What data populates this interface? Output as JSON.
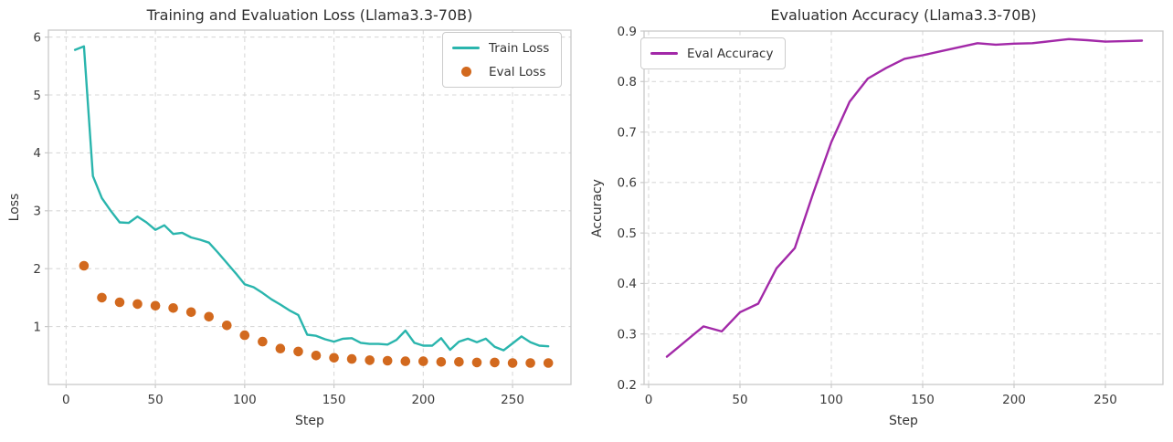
{
  "figure": {
    "background": "#ffffff",
    "grid_color": "#d9d9d9",
    "spine_color": "#c9c9c9",
    "tick_text_color": "#3b3b3b"
  },
  "chart_data": [
    {
      "type": "line",
      "title": "Training and Evaluation Loss (Llama3.3-70B)",
      "xlabel": "Step",
      "ylabel": "Loss",
      "xlim": [
        -9.9,
        282.7
      ],
      "ylim": [
        0,
        6.12
      ],
      "xticks": [
        "0",
        "50",
        "100",
        "150",
        "200",
        "250"
      ],
      "yticks": [
        "1",
        "2",
        "3",
        "4",
        "5",
        "6"
      ],
      "grid": "dashed",
      "legend_position": "upper right",
      "series": [
        {
          "name": "Train Loss",
          "type": "line",
          "color": "#2ab5ad",
          "x": [
            5,
            10,
            15,
            20,
            25,
            30,
            35,
            40,
            45,
            50,
            55,
            60,
            65,
            70,
            75,
            80,
            85,
            90,
            95,
            100,
            105,
            110,
            115,
            120,
            125,
            130,
            135,
            140,
            145,
            150,
            155,
            160,
            165,
            170,
            175,
            180,
            185,
            190,
            195,
            200,
            205,
            210,
            215,
            220,
            225,
            230,
            235,
            240,
            245,
            250,
            255,
            260,
            265,
            270
          ],
          "values": [
            5.78,
            5.84,
            3.6,
            3.22,
            3.0,
            2.8,
            2.79,
            2.9,
            2.8,
            2.67,
            2.75,
            2.6,
            2.62,
            2.54,
            2.5,
            2.45,
            2.28,
            2.1,
            1.92,
            1.73,
            1.68,
            1.58,
            1.47,
            1.38,
            1.28,
            1.2,
            0.86,
            0.84,
            0.78,
            0.74,
            0.79,
            0.8,
            0.72,
            0.7,
            0.7,
            0.69,
            0.77,
            0.93,
            0.72,
            0.67,
            0.67,
            0.8,
            0.6,
            0.74,
            0.79,
            0.73,
            0.79,
            0.65,
            0.59,
            0.71,
            0.83,
            0.73,
            0.67,
            0.66
          ]
        },
        {
          "name": "Eval Loss",
          "type": "scatter",
          "color": "#d2691e",
          "x": [
            10,
            20,
            30,
            40,
            50,
            60,
            70,
            80,
            90,
            100,
            110,
            120,
            130,
            140,
            150,
            160,
            170,
            180,
            190,
            200,
            210,
            220,
            230,
            240,
            250,
            260,
            270
          ],
          "values": [
            2.05,
            1.5,
            1.42,
            1.39,
            1.36,
            1.32,
            1.25,
            1.17,
            1.02,
            0.85,
            0.74,
            0.62,
            0.57,
            0.5,
            0.46,
            0.44,
            0.42,
            0.41,
            0.4,
            0.4,
            0.39,
            0.39,
            0.38,
            0.38,
            0.37,
            0.37,
            0.37
          ]
        }
      ]
    },
    {
      "type": "line",
      "title": "Evaluation Accuracy (Llama3.3-70B)",
      "xlabel": "Step",
      "ylabel": "Accuracy",
      "xlim": [
        -2.5,
        281.5
      ],
      "ylim": [
        0.2,
        0.9
      ],
      "xticks": [
        "0",
        "50",
        "100",
        "150",
        "200",
        "250"
      ],
      "yticks": [
        "0.2",
        "0.3",
        "0.4",
        "0.5",
        "0.6",
        "0.7",
        "0.8",
        "0.9"
      ],
      "grid": "dashed",
      "legend_position": "upper left",
      "series": [
        {
          "name": "Eval Accuracy",
          "type": "line",
          "color": "#a229a8",
          "x": [
            10,
            20,
            30,
            40,
            50,
            60,
            70,
            80,
            90,
            100,
            110,
            120,
            130,
            140,
            150,
            160,
            170,
            180,
            190,
            200,
            210,
            220,
            230,
            240,
            250,
            260,
            270
          ],
          "values": [
            0.255,
            0.285,
            0.315,
            0.305,
            0.343,
            0.36,
            0.43,
            0.47,
            0.578,
            0.68,
            0.76,
            0.806,
            0.827,
            0.845,
            0.852,
            0.86,
            0.868,
            0.876,
            0.873,
            0.875,
            0.876,
            0.88,
            0.884,
            0.882,
            0.879,
            0.88,
            0.881
          ]
        }
      ]
    }
  ]
}
